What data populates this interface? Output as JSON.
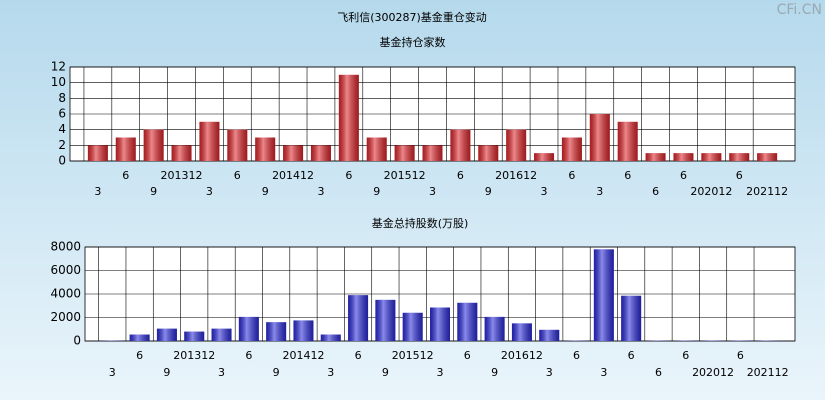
{
  "title": "飞利信(300287)基金重仓变动",
  "watermark": "CFi.CN",
  "chart_data": [
    {
      "type": "bar",
      "title": "基金持仓家数",
      "categories": [
        "3",
        "6",
        "9",
        "201312",
        "3",
        "6",
        "9",
        "201412",
        "3",
        "6",
        "9",
        "201512",
        "3",
        "6",
        "9",
        "201612",
        "3",
        "6",
        "3",
        "6",
        "6",
        "6",
        "202012",
        "6",
        "202112"
      ],
      "values": [
        2,
        3,
        4,
        2,
        5,
        4,
        3,
        2,
        2,
        11,
        3,
        2,
        2,
        4,
        2,
        4,
        1,
        3,
        6,
        5,
        1,
        1,
        1,
        1,
        1
      ],
      "color": "#e0262b",
      "ylim": [
        0,
        12
      ],
      "yticks": [
        0,
        2,
        4,
        6,
        8,
        10,
        12
      ],
      "grid": true
    },
    {
      "type": "bar",
      "title": "基金总持股数(万股)",
      "categories": [
        "3",
        "6",
        "9",
        "201312",
        "3",
        "6",
        "9",
        "201412",
        "3",
        "6",
        "9",
        "201512",
        "3",
        "6",
        "9",
        "201612",
        "3",
        "6",
        "3",
        "6",
        "6",
        "6",
        "202012",
        "6",
        "202112"
      ],
      "values": [
        30,
        550,
        1050,
        800,
        1050,
        2050,
        1600,
        1750,
        550,
        3900,
        3500,
        2400,
        2850,
        3250,
        2050,
        1500,
        950,
        30,
        7800,
        3850,
        30,
        30,
        30,
        30,
        30
      ],
      "color": "#2b2bdc",
      "ylim": [
        0,
        8000
      ],
      "yticks": [
        0,
        2000,
        4000,
        6000,
        8000
      ],
      "grid": true
    }
  ]
}
